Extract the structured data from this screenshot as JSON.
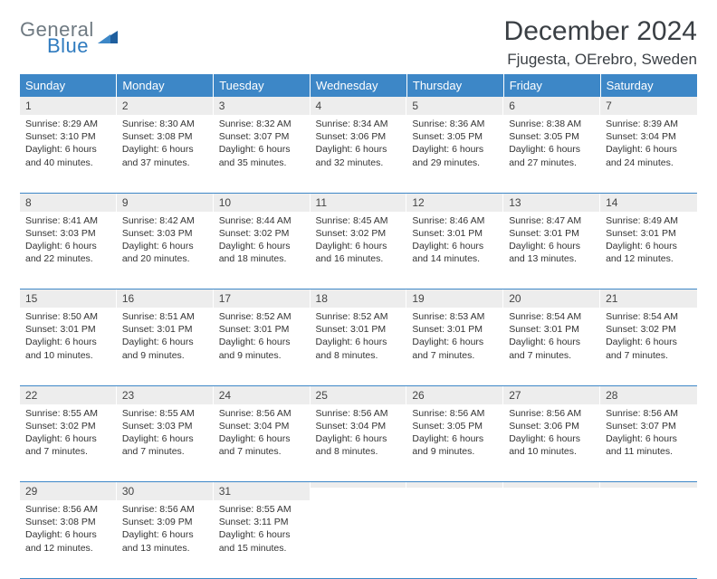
{
  "logo": {
    "top": "General",
    "bottom": "Blue",
    "mark_fill": "#1f5f9e",
    "text_gray": "#6f7a82",
    "text_blue": "#2f7bbf"
  },
  "title": "December 2024",
  "subtitle": "Fjugesta, OErebro, Sweden",
  "colors": {
    "header_bg": "#3d87c7",
    "header_fg": "#ffffff",
    "daynum_bg": "#ededed",
    "rule": "#3d87c7",
    "body_text": "#333333"
  },
  "weekdays": [
    "Sunday",
    "Monday",
    "Tuesday",
    "Wednesday",
    "Thursday",
    "Friday",
    "Saturday"
  ],
  "weeks": [
    [
      {
        "n": "1",
        "sr": "8:29 AM",
        "ss": "3:10 PM",
        "dl": "6 hours and 40 minutes."
      },
      {
        "n": "2",
        "sr": "8:30 AM",
        "ss": "3:08 PM",
        "dl": "6 hours and 37 minutes."
      },
      {
        "n": "3",
        "sr": "8:32 AM",
        "ss": "3:07 PM",
        "dl": "6 hours and 35 minutes."
      },
      {
        "n": "4",
        "sr": "8:34 AM",
        "ss": "3:06 PM",
        "dl": "6 hours and 32 minutes."
      },
      {
        "n": "5",
        "sr": "8:36 AM",
        "ss": "3:05 PM",
        "dl": "6 hours and 29 minutes."
      },
      {
        "n": "6",
        "sr": "8:38 AM",
        "ss": "3:05 PM",
        "dl": "6 hours and 27 minutes."
      },
      {
        "n": "7",
        "sr": "8:39 AM",
        "ss": "3:04 PM",
        "dl": "6 hours and 24 minutes."
      }
    ],
    [
      {
        "n": "8",
        "sr": "8:41 AM",
        "ss": "3:03 PM",
        "dl": "6 hours and 22 minutes."
      },
      {
        "n": "9",
        "sr": "8:42 AM",
        "ss": "3:03 PM",
        "dl": "6 hours and 20 minutes."
      },
      {
        "n": "10",
        "sr": "8:44 AM",
        "ss": "3:02 PM",
        "dl": "6 hours and 18 minutes."
      },
      {
        "n": "11",
        "sr": "8:45 AM",
        "ss": "3:02 PM",
        "dl": "6 hours and 16 minutes."
      },
      {
        "n": "12",
        "sr": "8:46 AM",
        "ss": "3:01 PM",
        "dl": "6 hours and 14 minutes."
      },
      {
        "n": "13",
        "sr": "8:47 AM",
        "ss": "3:01 PM",
        "dl": "6 hours and 13 minutes."
      },
      {
        "n": "14",
        "sr": "8:49 AM",
        "ss": "3:01 PM",
        "dl": "6 hours and 12 minutes."
      }
    ],
    [
      {
        "n": "15",
        "sr": "8:50 AM",
        "ss": "3:01 PM",
        "dl": "6 hours and 10 minutes."
      },
      {
        "n": "16",
        "sr": "8:51 AM",
        "ss": "3:01 PM",
        "dl": "6 hours and 9 minutes."
      },
      {
        "n": "17",
        "sr": "8:52 AM",
        "ss": "3:01 PM",
        "dl": "6 hours and 9 minutes."
      },
      {
        "n": "18",
        "sr": "8:52 AM",
        "ss": "3:01 PM",
        "dl": "6 hours and 8 minutes."
      },
      {
        "n": "19",
        "sr": "8:53 AM",
        "ss": "3:01 PM",
        "dl": "6 hours and 7 minutes."
      },
      {
        "n": "20",
        "sr": "8:54 AM",
        "ss": "3:01 PM",
        "dl": "6 hours and 7 minutes."
      },
      {
        "n": "21",
        "sr": "8:54 AM",
        "ss": "3:02 PM",
        "dl": "6 hours and 7 minutes."
      }
    ],
    [
      {
        "n": "22",
        "sr": "8:55 AM",
        "ss": "3:02 PM",
        "dl": "6 hours and 7 minutes."
      },
      {
        "n": "23",
        "sr": "8:55 AM",
        "ss": "3:03 PM",
        "dl": "6 hours and 7 minutes."
      },
      {
        "n": "24",
        "sr": "8:56 AM",
        "ss": "3:04 PM",
        "dl": "6 hours and 7 minutes."
      },
      {
        "n": "25",
        "sr": "8:56 AM",
        "ss": "3:04 PM",
        "dl": "6 hours and 8 minutes."
      },
      {
        "n": "26",
        "sr": "8:56 AM",
        "ss": "3:05 PM",
        "dl": "6 hours and 9 minutes."
      },
      {
        "n": "27",
        "sr": "8:56 AM",
        "ss": "3:06 PM",
        "dl": "6 hours and 10 minutes."
      },
      {
        "n": "28",
        "sr": "8:56 AM",
        "ss": "3:07 PM",
        "dl": "6 hours and 11 minutes."
      }
    ],
    [
      {
        "n": "29",
        "sr": "8:56 AM",
        "ss": "3:08 PM",
        "dl": "6 hours and 12 minutes."
      },
      {
        "n": "30",
        "sr": "8:56 AM",
        "ss": "3:09 PM",
        "dl": "6 hours and 13 minutes."
      },
      {
        "n": "31",
        "sr": "8:55 AM",
        "ss": "3:11 PM",
        "dl": "6 hours and 15 minutes."
      },
      null,
      null,
      null,
      null
    ]
  ],
  "labels": {
    "sunrise": "Sunrise:",
    "sunset": "Sunset:",
    "daylight": "Daylight:"
  }
}
